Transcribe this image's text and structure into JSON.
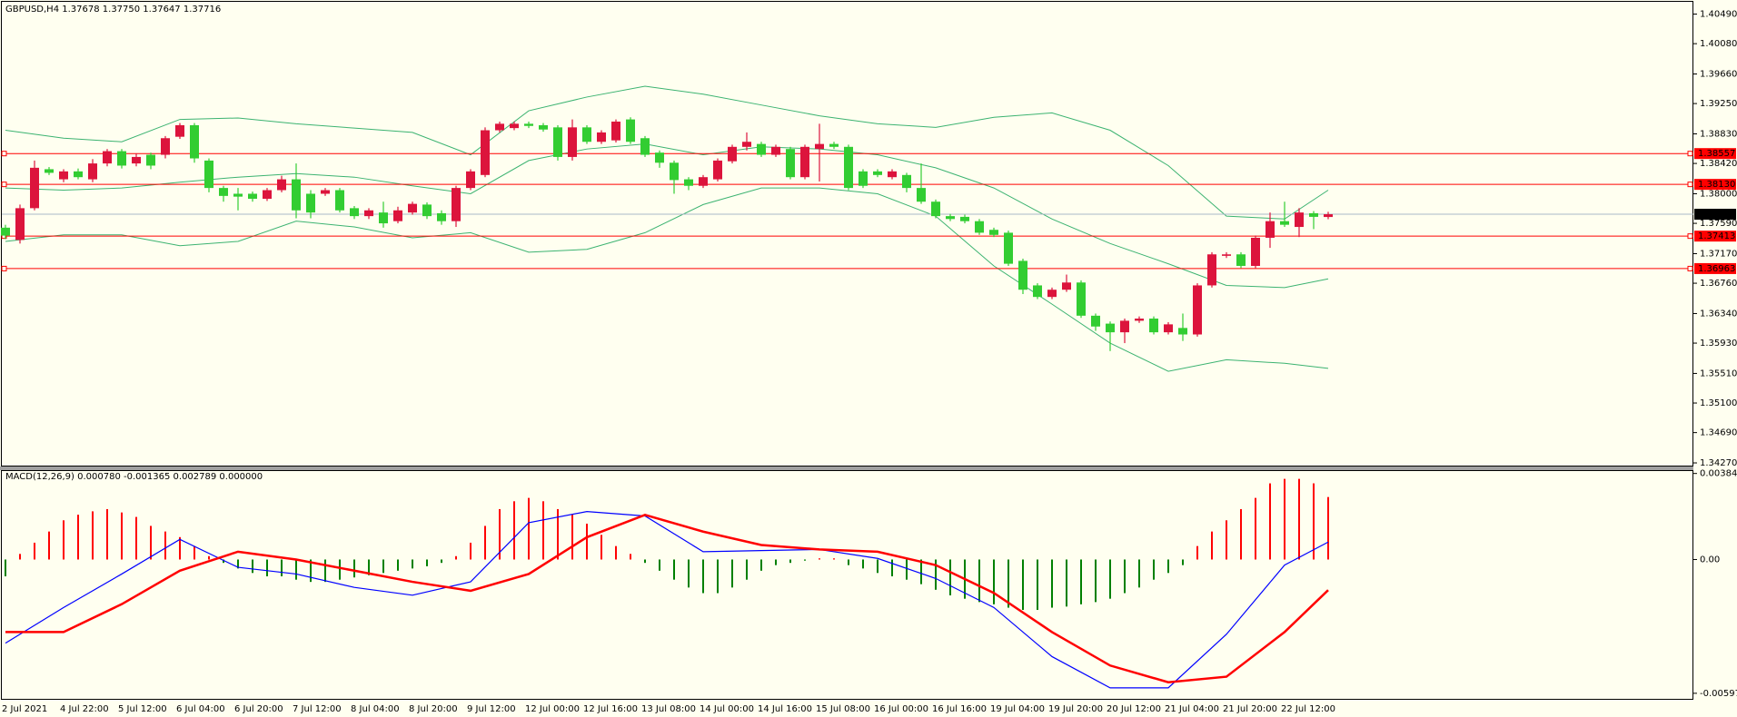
{
  "chart_data": [
    {
      "type": "candlestick",
      "title": "GBPUSD,H4  1.37678 1.37750 1.37647 1.37716",
      "categories": [
        "2 Jul 2021",
        null,
        null,
        null,
        "4 Jul 22:00",
        null,
        null,
        null,
        "5 Jul 12:00",
        null,
        null,
        null,
        "6 Jul 04:00",
        null,
        null,
        null,
        "6 Jul 20:00",
        null,
        null,
        null,
        "7 Jul 12:00",
        null,
        null,
        null,
        "8 Jul 04:00",
        null,
        null,
        null,
        "8 Jul 20:00",
        null,
        null,
        null,
        "9 Jul 12:00",
        null,
        null,
        null,
        "12 Jul 00:00",
        null,
        null,
        null,
        "12 Jul 16:00",
        null,
        null,
        null,
        "13 Jul 08:00",
        null,
        null,
        null,
        "14 Jul 00:00",
        null,
        null,
        null,
        "14 Jul 16:00",
        null,
        null,
        null,
        "15 Jul 08:00",
        null,
        null,
        null,
        "16 Jul 00:00",
        null,
        null,
        null,
        "16 Jul 16:00",
        null,
        null,
        null,
        "19 Jul 04:00",
        null,
        null,
        null,
        "19 Jul 20:00",
        null,
        null,
        null,
        "20 Jul 12:00",
        null,
        null,
        null,
        "21 Jul 04:00",
        null,
        null,
        null,
        "21 Jul 20:00",
        null,
        null,
        null,
        "22 Jul 12:00",
        null,
        null,
        null
      ],
      "open": [
        1.3753,
        1.3736,
        1.378,
        1.3834,
        1.382,
        1.3831,
        1.382,
        1.3842,
        1.3859,
        1.3842,
        1.3854,
        1.3854,
        1.3879,
        1.3895,
        1.3846,
        1.3808,
        1.38,
        1.38,
        1.3793,
        1.3805,
        1.382,
        1.38,
        1.38,
        1.3805,
        1.378,
        1.3769,
        1.3774,
        1.3762,
        1.3774,
        1.3785,
        1.3773,
        1.3762,
        1.3808,
        1.3826,
        1.3888,
        1.3891,
        1.3897,
        1.3895,
        1.3892,
        1.3851,
        1.3892,
        1.3872,
        1.3874,
        1.3903,
        1.3877,
        1.3857,
        1.3843,
        1.382,
        1.3811,
        1.382,
        1.3845,
        1.3865,
        1.3869,
        1.3854,
        1.3862,
        1.3823,
        1.3862,
        1.3869,
        1.3865,
        1.3831,
        1.3831,
        1.3823,
        1.3826,
        1.3808,
        1.3789,
        1.3769,
        1.3768,
        1.3762,
        1.375,
        1.3746,
        1.3707,
        1.3673,
        1.3657,
        1.3667,
        1.3677,
        1.3631,
        1.362,
        1.3608,
        1.3624,
        1.3627,
        1.3608,
        1.3614,
        1.3605,
        1.3673,
        1.3714,
        1.3716,
        1.37,
        1.3739,
        1.3762,
        1.3754,
        1.3773,
        1.37678
      ],
      "high": [
        1.3757,
        1.3785,
        1.3846,
        1.3837,
        1.3834,
        1.3835,
        1.3848,
        1.3862,
        1.3862,
        1.3856,
        1.3857,
        1.388,
        1.3898,
        1.3898,
        1.3849,
        1.3811,
        1.3808,
        1.3803,
        1.3808,
        1.3825,
        1.3842,
        1.3805,
        1.3808,
        1.3808,
        1.3783,
        1.378,
        1.3789,
        1.3782,
        1.3789,
        1.3788,
        1.3777,
        1.3811,
        1.3834,
        1.3892,
        1.39,
        1.39,
        1.39,
        1.3898,
        1.3895,
        1.3903,
        1.3895,
        1.3888,
        1.3903,
        1.3906,
        1.388,
        1.386,
        1.3846,
        1.3823,
        1.3826,
        1.3849,
        1.3868,
        1.3885,
        1.3872,
        1.3868,
        1.3865,
        1.3868,
        1.3897,
        1.3872,
        1.3868,
        1.3834,
        1.3834,
        1.3834,
        1.3829,
        1.3842,
        1.3792,
        1.3772,
        1.3771,
        1.3765,
        1.3753,
        1.3749,
        1.371,
        1.3676,
        1.367,
        1.3688,
        1.368,
        1.3634,
        1.3623,
        1.3627,
        1.363,
        1.363,
        1.3622,
        1.3634,
        1.3676,
        1.3719,
        1.3719,
        1.3719,
        1.3742,
        1.3774,
        1.3789,
        1.378,
        1.3776,
        1.3775
      ],
      "low": [
        1.3737,
        1.3731,
        1.3777,
        1.3826,
        1.3816,
        1.382,
        1.3816,
        1.3838,
        1.3835,
        1.3838,
        1.3834,
        1.3849,
        1.3876,
        1.3843,
        1.3802,
        1.3789,
        1.3777,
        1.3789,
        1.379,
        1.3802,
        1.3766,
        1.3766,
        1.3797,
        1.3774,
        1.3765,
        1.3765,
        1.3753,
        1.3759,
        1.3771,
        1.3765,
        1.3757,
        1.3754,
        1.3805,
        1.3823,
        1.3885,
        1.3888,
        1.3891,
        1.3886,
        1.3846,
        1.3846,
        1.3869,
        1.3869,
        1.3871,
        1.3869,
        1.3851,
        1.3836,
        1.38,
        1.3805,
        1.3808,
        1.3817,
        1.3842,
        1.386,
        1.3851,
        1.3851,
        1.382,
        1.382,
        1.3817,
        1.3862,
        1.3805,
        1.3808,
        1.3823,
        1.382,
        1.3802,
        1.3786,
        1.3766,
        1.3762,
        1.3759,
        1.3743,
        1.374,
        1.37,
        1.3661,
        1.3654,
        1.3654,
        1.3664,
        1.3628,
        1.361,
        1.3582,
        1.3593,
        1.3621,
        1.3605,
        1.3605,
        1.3596,
        1.3602,
        1.367,
        1.3711,
        1.3697,
        1.3697,
        1.3725,
        1.3754,
        1.374,
        1.3751,
        1.37647
      ],
      "close": [
        1.3742,
        1.378,
        1.3836,
        1.3829,
        1.3831,
        1.3823,
        1.3842,
        1.3859,
        1.3839,
        1.3851,
        1.3839,
        1.3877,
        1.3895,
        1.3849,
        1.3808,
        1.3797,
        1.3796,
        1.3793,
        1.3805,
        1.382,
        1.3777,
        1.3774,
        1.3805,
        1.3777,
        1.3769,
        1.3777,
        1.3759,
        1.3777,
        1.3786,
        1.3769,
        1.3762,
        1.3808,
        1.3831,
        1.3888,
        1.3897,
        1.3897,
        1.3894,
        1.3889,
        1.3851,
        1.3892,
        1.3872,
        1.3885,
        1.39,
        1.3872,
        1.3854,
        1.3843,
        1.3819,
        1.3811,
        1.3823,
        1.3846,
        1.3865,
        1.3872,
        1.3854,
        1.3865,
        1.3823,
        1.3865,
        1.3869,
        1.3865,
        1.3808,
        1.3811,
        1.3826,
        1.3831,
        1.3808,
        1.3789,
        1.3769,
        1.3765,
        1.3762,
        1.3746,
        1.3743,
        1.3703,
        1.3667,
        1.3657,
        1.3667,
        1.3677,
        1.3631,
        1.3616,
        1.3608,
        1.3624,
        1.3627,
        1.3608,
        1.3619,
        1.3605,
        1.3673,
        1.3716,
        1.3716,
        1.37,
        1.3739,
        1.3762,
        1.3757,
        1.3774,
        1.3768,
        1.37716
      ],
      "up_color": "#dc143c",
      "down_color": "#32cd32",
      "ylim": [
        1.3422,
        1.4066
      ],
      "yticks": [
        {
          "value": 1.4049,
          "label": "1.40490"
        },
        {
          "value": 1.4008,
          "label": "1.40080"
        },
        {
          "value": 1.3966,
          "label": "1.39660"
        },
        {
          "value": 1.3925,
          "label": "1.39250"
        },
        {
          "value": 1.3883,
          "label": "1.38830"
        },
        {
          "value": 1.3842,
          "label": "1.38420"
        },
        {
          "value": 1.38,
          "label": "1.38000"
        },
        {
          "value": 1.3759,
          "label": "1.37590"
        },
        {
          "value": 1.3717,
          "label": "1.37170"
        },
        {
          "value": 1.3676,
          "label": "1.36760"
        },
        {
          "value": 1.3634,
          "label": "1.36340"
        },
        {
          "value": 1.3593,
          "label": "1.35930"
        },
        {
          "value": 1.3551,
          "label": "1.35510"
        },
        {
          "value": 1.351,
          "label": "1.35100"
        },
        {
          "value": 1.3469,
          "label": "1.34690"
        },
        {
          "value": 1.3427,
          "label": "1.34270"
        }
      ],
      "grid": false,
      "hlines": [
        1.38557,
        {
          "value": 1.3813,
          "label": "1.38130"
        },
        1.37413,
        1.36963
      ],
      "hline_color": "#ff0000",
      "last_price_color": "#a9b8c8",
      "bands": {
        "color": "#3cb371",
        "x": [
          0,
          4,
          8,
          12,
          16,
          20,
          24,
          28,
          32,
          36,
          40,
          44,
          48,
          52,
          56,
          60,
          64,
          68,
          72,
          76,
          80,
          84,
          88,
          91
        ],
        "upper": [
          1.3888,
          1.3877,
          1.3872,
          1.3903,
          1.3905,
          1.3897,
          1.3891,
          1.3885,
          1.3854,
          1.3915,
          1.3934,
          1.3949,
          1.3938,
          1.3923,
          1.3908,
          1.3897,
          1.3892,
          1.3906,
          1.3912,
          1.3888,
          1.3839,
          1.3769,
          1.3765,
          1.3805
        ],
        "middle": [
          1.3808,
          1.3805,
          1.3808,
          1.3816,
          1.3823,
          1.3828,
          1.3823,
          1.3811,
          1.38,
          1.3846,
          1.3862,
          1.3869,
          1.3854,
          1.3865,
          1.3862,
          1.3854,
          1.3836,
          1.3808,
          1.3765,
          1.3731,
          1.3703,
          1.3673,
          1.367,
          1.3682
        ],
        "lower": [
          1.3734,
          1.3743,
          1.3743,
          1.3728,
          1.3734,
          1.3762,
          1.3754,
          1.3739,
          1.3746,
          1.3719,
          1.3723,
          1.3746,
          1.3785,
          1.3808,
          1.3808,
          1.38,
          1.3769,
          1.37,
          1.3647,
          1.3593,
          1.3554,
          1.357,
          1.3565,
          1.3558
        ]
      }
    },
    {
      "type": "macd",
      "title": "MACD(12,26,9) 0.000780 -0.001365 0.002789 0.000000",
      "ylim": [
        -0.00622,
        0.00399
      ],
      "yticks": [
        0.003841,
        {
          "value": 0,
          "label": "0.00"
        },
        -0.005972
      ],
      "histogram": {
        "up_color": "#ff0000",
        "down_color": "#008000",
        "values": [
          -0.00075,
          0.00025,
          0.00075,
          0.00125,
          0.00175,
          0.002,
          0.00215,
          0.00225,
          0.0021,
          0.0019,
          0.0015,
          0.00125,
          0.001,
          0.0006,
          0.00015,
          -0.00015,
          -0.0004,
          -0.0006,
          -0.00075,
          -0.00075,
          -0.0009,
          -0.001,
          -0.001,
          -0.0009,
          -0.0008,
          -0.0007,
          -0.0006,
          -0.0005,
          -0.0004,
          -0.0003,
          -0.00015,
          0.00015,
          0.00075,
          0.0015,
          0.00225,
          0.0026,
          0.00275,
          0.0026,
          0.00225,
          0.002,
          0.0016,
          0.0011,
          0.0006,
          0.00025,
          -0.00015,
          -0.0005,
          -0.0009,
          -0.00125,
          -0.0015,
          -0.0015,
          -0.00125,
          -0.0009,
          -0.0005,
          -0.00025,
          -0.00015,
          -5e-05,
          5e-05,
          5e-05,
          -0.00025,
          -0.0004,
          -0.0006,
          -0.00075,
          -0.0009,
          -0.0011,
          -0.00135,
          -0.0016,
          -0.00175,
          -0.0019,
          -0.002,
          -0.00215,
          -0.00225,
          -0.00225,
          -0.00215,
          -0.0021,
          -0.002,
          -0.0019,
          -0.00175,
          -0.0015,
          -0.00125,
          -0.0009,
          -0.0006,
          -0.00025,
          0.0006,
          0.00125,
          0.00175,
          0.00225,
          0.00275,
          0.0034,
          0.0036,
          0.0036,
          0.0034,
          0.002789
        ]
      },
      "main": {
        "color": "#0000ff",
        "x": [
          0,
          4,
          8,
          12,
          16,
          20,
          24,
          28,
          32,
          36,
          40,
          44,
          48,
          52,
          56,
          60,
          64,
          68,
          72,
          76,
          80,
          84,
          88,
          91
        ],
        "values": [
          -0.003735,
          -0.002142,
          -0.000647,
          0.000897,
          -0.000349,
          -0.000647,
          -0.001245,
          -0.001594,
          -0.000996,
          0.001644,
          0.002142,
          0.001943,
          0.000349,
          0.000398,
          0.000448,
          5e-05,
          -0.000847,
          -0.002142,
          -0.004334,
          -0.005728,
          -0.005728,
          -0.003337,
          -0.000249,
          0.00078
        ]
      },
      "signal": {
        "color": "#ff0000",
        "x": [
          0,
          4,
          8,
          12,
          16,
          20,
          24,
          28,
          32,
          36,
          40,
          44,
          48,
          52,
          56,
          60,
          64,
          68,
          72,
          76,
          80,
          84,
          88,
          91
        ],
        "values": [
          -0.003238,
          -0.003238,
          -0.001993,
          -0.000498,
          0.000349,
          0,
          -0.000498,
          -0.000996,
          -0.001395,
          -0.000647,
          0.000996,
          0.001993,
          0.001245,
          0.000647,
          0.000448,
          0.000349,
          -0.000249,
          -0.001494,
          -0.003238,
          -0.004732,
          -0.005479,
          -0.00523,
          -0.003238,
          -0.001365
        ]
      }
    }
  ]
}
